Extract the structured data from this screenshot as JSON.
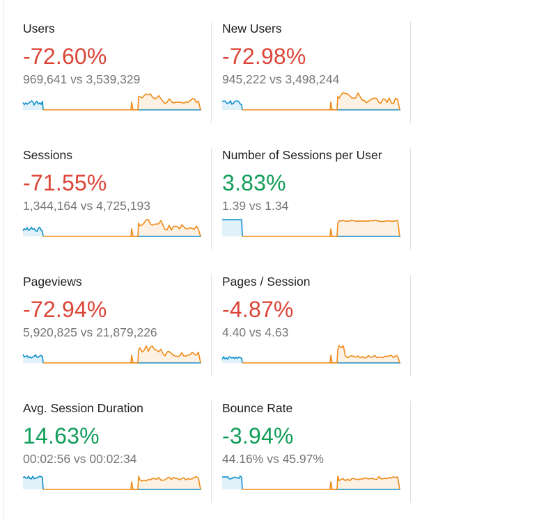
{
  "colors": {
    "negative": "#db4437",
    "positive": "#0f9d58",
    "current_series": "#0b8fcd",
    "previous_series": "#ef8a17"
  },
  "metrics": [
    {
      "label": "Users",
      "change": "-72.60%",
      "trend": "negative",
      "comparison": "969,641 vs 3,539,329"
    },
    {
      "label": "New Users",
      "change": "-72.98%",
      "trend": "negative",
      "comparison": "945,222 vs 3,498,244"
    },
    {
      "label": "Sessions",
      "change": "-71.55%",
      "trend": "negative",
      "comparison": "1,344,164 vs 4,725,193"
    },
    {
      "label": "Number of Sessions per User",
      "change": "3.83%",
      "trend": "positive",
      "comparison": "1.39 vs 1.34"
    },
    {
      "label": "Pageviews",
      "change": "-72.94%",
      "trend": "negative",
      "comparison": "5,920,825 vs 21,879,226"
    },
    {
      "label": "Pages / Session",
      "change": "-4.87%",
      "trend": "negative",
      "comparison": "4.40 vs 4.63"
    },
    {
      "label": "Avg. Session Duration",
      "change": "14.63%",
      "trend": "positive",
      "comparison": "00:02:56 vs 00:02:34"
    },
    {
      "label": "Bounce Rate",
      "change": "-3.94%",
      "trend": "positive",
      "comparison": "44.16% vs 45.97%"
    }
  ]
}
